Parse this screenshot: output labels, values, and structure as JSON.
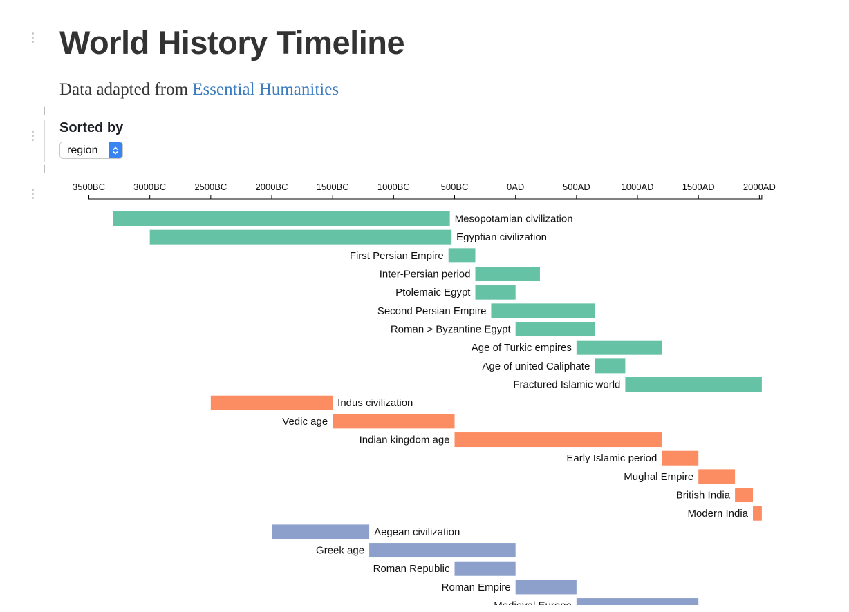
{
  "page": {
    "title": "World History Timeline",
    "subtitle_prefix": "Data adapted from ",
    "subtitle_link": "Essential Humanities"
  },
  "controls": {
    "sorted_by_label": "Sorted by",
    "sort_value": "region",
    "sort_options": [
      "region"
    ]
  },
  "colors": {
    "Middle East": "#66c2a5",
    "South Asia": "#fc8d62",
    "Europe": "#8da0cb",
    "link": "#3b7bbf",
    "select_accent": "#3a84f2"
  },
  "chart_data": {
    "type": "bar",
    "subtype": "horizontal-timeline",
    "x_axis": {
      "ticks": [
        {
          "value": -3500,
          "label": "3500BC"
        },
        {
          "value": -3000,
          "label": "3000BC"
        },
        {
          "value": -2500,
          "label": "2500BC"
        },
        {
          "value": -2000,
          "label": "2000BC"
        },
        {
          "value": -1500,
          "label": "1500BC"
        },
        {
          "value": -1000,
          "label": "1000BC"
        },
        {
          "value": -500,
          "label": "500BC"
        },
        {
          "value": 0,
          "label": "0AD"
        },
        {
          "value": 500,
          "label": "500AD"
        },
        {
          "value": 1000,
          "label": "1000AD"
        },
        {
          "value": 1500,
          "label": "1500AD"
        },
        {
          "value": 2000,
          "label": "2000AD"
        }
      ],
      "position": "top"
    },
    "events": [
      {
        "name": "Mesopotamian civilization",
        "start": -3300,
        "end": -539,
        "region": "Middle East"
      },
      {
        "name": "Egyptian civilization",
        "start": -3000,
        "end": -525,
        "region": "Middle East"
      },
      {
        "name": "First Persian Empire",
        "start": -550,
        "end": -330,
        "region": "Middle East"
      },
      {
        "name": "Inter-Persian period",
        "start": -330,
        "end": 200,
        "region": "Middle East"
      },
      {
        "name": "Ptolemaic Egypt",
        "start": -330,
        "end": 0,
        "region": "Middle East"
      },
      {
        "name": "Second Persian Empire",
        "start": -200,
        "end": 650,
        "region": "Middle East"
      },
      {
        "name": "Roman > Byzantine Egypt",
        "start": 0,
        "end": 650,
        "region": "Middle East"
      },
      {
        "name": "Age of Turkic empires",
        "start": 500,
        "end": 1200,
        "region": "Middle East"
      },
      {
        "name": "Age of united Caliphate",
        "start": 650,
        "end": 900,
        "region": "Middle East"
      },
      {
        "name": "Fractured Islamic world",
        "start": 900,
        "end": 2020,
        "region": "Middle East"
      },
      {
        "name": "Indus civilization",
        "start": -2500,
        "end": -1500,
        "region": "South Asia"
      },
      {
        "name": "Vedic age",
        "start": -1500,
        "end": -500,
        "region": "South Asia"
      },
      {
        "name": "Indian kingdom age",
        "start": -500,
        "end": 1200,
        "region": "South Asia"
      },
      {
        "name": "Early Islamic period",
        "start": 1200,
        "end": 1500,
        "region": "South Asia"
      },
      {
        "name": "Mughal Empire",
        "start": 1500,
        "end": 1800,
        "region": "South Asia"
      },
      {
        "name": "British India",
        "start": 1800,
        "end": 1947,
        "region": "South Asia"
      },
      {
        "name": "Modern India",
        "start": 1947,
        "end": 2020,
        "region": "South Asia"
      },
      {
        "name": "Aegean civilization",
        "start": -2000,
        "end": -1200,
        "region": "Europe"
      },
      {
        "name": "Greek age",
        "start": -1200,
        "end": 0,
        "region": "Europe"
      },
      {
        "name": "Roman Republic",
        "start": -500,
        "end": 0,
        "region": "Europe"
      },
      {
        "name": "Roman Empire",
        "start": 0,
        "end": 500,
        "region": "Europe"
      },
      {
        "name": "Medieval Europe",
        "start": 500,
        "end": 1500,
        "region": "Europe"
      }
    ]
  }
}
